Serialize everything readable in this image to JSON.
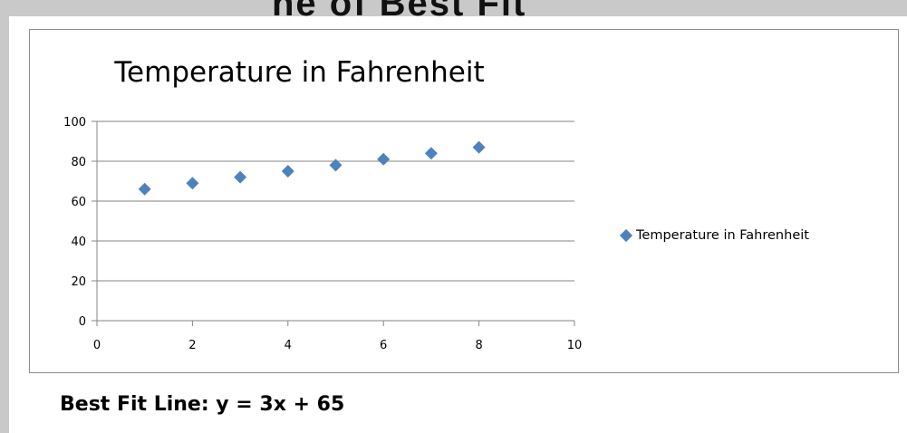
{
  "slide": {
    "top_text": "ne of Best Fit",
    "caption": "Best Fit Line: y = 3x + 65"
  },
  "chart_data": {
    "type": "scatter",
    "title": "Temperature in Fahrenheit",
    "xlabel": "",
    "ylabel": "",
    "xlim": [
      0,
      10
    ],
    "ylim": [
      0,
      100
    ],
    "xticks": [
      0,
      2,
      4,
      6,
      8,
      10
    ],
    "yticks": [
      0,
      20,
      40,
      60,
      80,
      100
    ],
    "grid": "horizontal",
    "legend_position": "right",
    "series": [
      {
        "name": "Temperature in Fahrenheit",
        "color": "#4f81bd",
        "marker": "diamond",
        "x": [
          1,
          2,
          3,
          4,
          5,
          6,
          7,
          8
        ],
        "y": [
          66,
          69,
          72,
          75,
          78,
          81,
          84,
          87
        ]
      }
    ]
  }
}
